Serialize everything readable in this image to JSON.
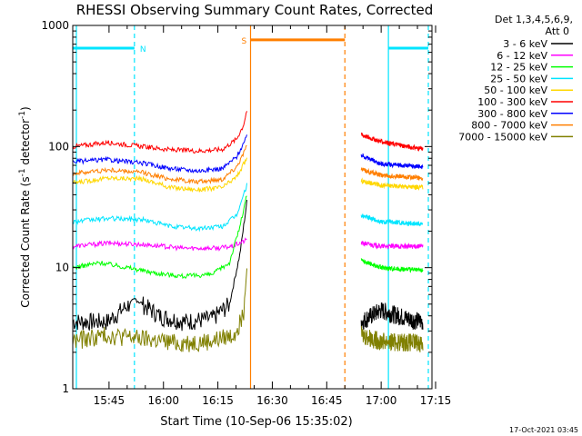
{
  "chart_data": {
    "type": "line",
    "title": "RHESSI Observing Summary Count Rates, Corrected",
    "xlabel": "Start Time (10-Sep-06 15:35:02)",
    "ylabel_main": "Corrected Count Rate (s",
    "ylabel_sup1": "-1",
    "ylabel_mid": " detector",
    "ylabel_sup2": "-1",
    "ylabel_end": ")",
    "y_scale": "log",
    "ylim": [
      1,
      1000
    ],
    "xlim_minutes": [
      15.6,
      17.3
    ],
    "x_ticks": [
      "15:45",
      "16:00",
      "16:15",
      "16:30",
      "16:45",
      "17:00",
      "17:15"
    ],
    "y_ticks": [
      "1",
      "10",
      "100",
      "1000"
    ],
    "legend_header": [
      "Det 1,3,4,5,6,9,",
      "Att 0"
    ],
    "timestamp": "17-Oct-2021 03:45",
    "attenuator_flags": [
      {
        "label": "N",
        "color": "#00e5ff",
        "start": "15:35",
        "end": "15:52",
        "level": 650
      },
      {
        "label": "",
        "color": "#00e5ff",
        "start": "17:02",
        "end": "17:13",
        "level": 650
      },
      {
        "label": "S",
        "color": "#ff7f00",
        "start": "16:24",
        "end": "16:50",
        "level": 760
      }
    ],
    "vertical_markers": [
      {
        "time": "15:52",
        "color": "#00e5ff",
        "style": "dashed"
      },
      {
        "time": "17:02",
        "color": "#00e5ff",
        "style": "solid"
      },
      {
        "time": "17:13",
        "color": "#00e5ff",
        "style": "dashed"
      },
      {
        "time": "16:24",
        "color": "#ff7f00",
        "style": "solid"
      },
      {
        "time": "16:50",
        "color": "#ff7f00",
        "style": "dashed"
      },
      {
        "time": "15:36",
        "color": "#00e5ff",
        "style": "solid"
      }
    ],
    "data_gap": {
      "start": "16:24",
      "end": "16:53"
    },
    "series": [
      {
        "name": "3 - 6 keV",
        "color": "#000000",
        "pre": [
          [
            0,
            3.6
          ],
          [
            10,
            3.6
          ],
          [
            18,
            5.5
          ],
          [
            25,
            4.0
          ],
          [
            32,
            3.6
          ],
          [
            40,
            3.8
          ],
          [
            45,
            5
          ],
          [
            48,
            13
          ],
          [
            50,
            35
          ]
        ],
        "post": [
          [
            78,
            3.6
          ],
          [
            85,
            4.5
          ],
          [
            95,
            3.8
          ],
          [
            100,
            3.6
          ]
        ]
      },
      {
        "name": "6 - 12 keV",
        "color": "#ff00ff",
        "pre": [
          [
            0,
            15
          ],
          [
            10,
            16
          ],
          [
            20,
            15.5
          ],
          [
            30,
            14.5
          ],
          [
            40,
            14.5
          ],
          [
            44,
            15
          ],
          [
            48,
            17
          ]
        ],
        "post": [
          [
            78,
            16
          ],
          [
            85,
            15
          ],
          [
            100,
            15
          ]
        ]
      },
      {
        "name": "12 - 25 keV",
        "color": "#00ff00",
        "pre": [
          [
            0,
            10
          ],
          [
            8,
            11
          ],
          [
            16,
            10
          ],
          [
            24,
            9
          ],
          [
            32,
            8.5
          ],
          [
            40,
            8.8
          ],
          [
            45,
            11
          ],
          [
            48,
            22
          ],
          [
            50,
            40
          ]
        ],
        "post": [
          [
            78,
            11.5
          ],
          [
            85,
            10
          ],
          [
            100,
            9.5
          ]
        ]
      },
      {
        "name": "25 - 50 keV",
        "color": "#00e5ff",
        "pre": [
          [
            0,
            24
          ],
          [
            10,
            25.5
          ],
          [
            20,
            25
          ],
          [
            28,
            22
          ],
          [
            36,
            21
          ],
          [
            43,
            22
          ],
          [
            47,
            27
          ],
          [
            50,
            48
          ]
        ],
        "post": [
          [
            78,
            27
          ],
          [
            85,
            24
          ],
          [
            100,
            23
          ]
        ]
      },
      {
        "name": "50 - 100 keV",
        "color": "#ffd700",
        "pre": [
          [
            0,
            50
          ],
          [
            10,
            55
          ],
          [
            20,
            54
          ],
          [
            28,
            46
          ],
          [
            36,
            44
          ],
          [
            43,
            46
          ],
          [
            47,
            56
          ],
          [
            50,
            80
          ]
        ],
        "post": [
          [
            78,
            52
          ],
          [
            85,
            48
          ],
          [
            100,
            46
          ]
        ]
      },
      {
        "name": "100 - 300 keV",
        "color": "#ff0000",
        "pre": [
          [
            0,
            100
          ],
          [
            10,
            108
          ],
          [
            20,
            100
          ],
          [
            28,
            94
          ],
          [
            36,
            92
          ],
          [
            43,
            95
          ],
          [
            47,
            115
          ],
          [
            49,
            150
          ],
          [
            50,
            200
          ]
        ],
        "post": [
          [
            78,
            125
          ],
          [
            85,
            110
          ],
          [
            100,
            95
          ]
        ]
      },
      {
        "name": "300 - 800 keV",
        "color": "#0000ff",
        "pre": [
          [
            0,
            75
          ],
          [
            10,
            78
          ],
          [
            20,
            73
          ],
          [
            28,
            66
          ],
          [
            36,
            63
          ],
          [
            43,
            66
          ],
          [
            47,
            82
          ],
          [
            50,
            120
          ]
        ],
        "post": [
          [
            78,
            85
          ],
          [
            85,
            72
          ],
          [
            100,
            68
          ]
        ]
      },
      {
        "name": "800 - 7000 keV",
        "color": "#ff7f00",
        "pre": [
          [
            0,
            60
          ],
          [
            10,
            64
          ],
          [
            20,
            61
          ],
          [
            28,
            54
          ],
          [
            36,
            51
          ],
          [
            43,
            54
          ],
          [
            47,
            68
          ],
          [
            50,
            100
          ]
        ],
        "post": [
          [
            78,
            65
          ],
          [
            85,
            58
          ],
          [
            100,
            55
          ]
        ]
      },
      {
        "name": "7000 - 15000 keV",
        "color": "#808000",
        "pre": [
          [
            0,
            2.5
          ],
          [
            10,
            2.8
          ],
          [
            20,
            2.6
          ],
          [
            30,
            2.4
          ],
          [
            40,
            2.5
          ],
          [
            46,
            2.8
          ],
          [
            49,
            4
          ],
          [
            50,
            10
          ]
        ],
        "post": [
          [
            78,
            2.8
          ],
          [
            85,
            2.5
          ],
          [
            100,
            2.4
          ]
        ]
      }
    ]
  }
}
